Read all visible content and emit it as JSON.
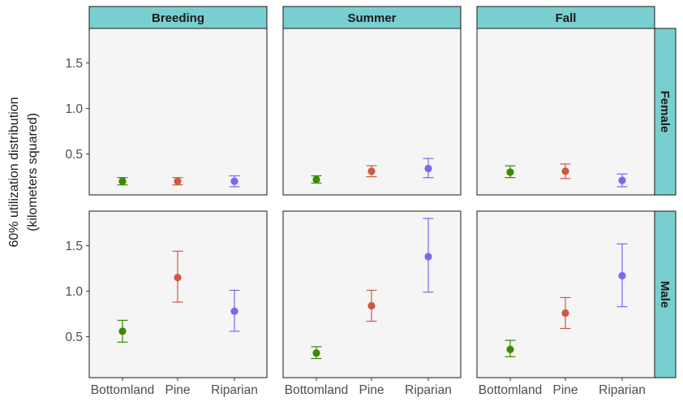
{
  "chart_data": {
    "type": "scatter",
    "ylabel_line1": "60% utilization distribution",
    "ylabel_line2": "(kilometers squared)",
    "categories": [
      "Bottomland",
      "Pine",
      "Riparian"
    ],
    "category_colors": [
      "#3b8a00",
      "#cc5a42",
      "#7b68ee"
    ],
    "col_facets": [
      "Breeding",
      "Summer",
      "Fall"
    ],
    "row_facets": [
      "Female",
      "Male"
    ],
    "yticks": [
      0.5,
      1.0,
      1.5
    ],
    "ytick_labels": [
      "0.5",
      "1.0",
      "1.5"
    ],
    "ylim": [
      0.05,
      1.88
    ],
    "panel_background": "#f5f5f5",
    "strip_color": "#79cfcf",
    "panels": [
      {
        "row": "Female",
        "col": "Breeding",
        "points": [
          {
            "category": "Bottomland",
            "y": 0.2,
            "low": 0.16,
            "high": 0.24
          },
          {
            "category": "Pine",
            "y": 0.2,
            "low": 0.16,
            "high": 0.24
          },
          {
            "category": "Riparian",
            "y": 0.2,
            "low": 0.14,
            "high": 0.26
          }
        ]
      },
      {
        "row": "Female",
        "col": "Summer",
        "points": [
          {
            "category": "Bottomland",
            "y": 0.22,
            "low": 0.18,
            "high": 0.26
          },
          {
            "category": "Pine",
            "y": 0.31,
            "low": 0.25,
            "high": 0.37
          },
          {
            "category": "Riparian",
            "y": 0.34,
            "low": 0.24,
            "high": 0.45
          }
        ]
      },
      {
        "row": "Female",
        "col": "Fall",
        "points": [
          {
            "category": "Bottomland",
            "y": 0.3,
            "low": 0.24,
            "high": 0.37
          },
          {
            "category": "Pine",
            "y": 0.31,
            "low": 0.23,
            "high": 0.39
          },
          {
            "category": "Riparian",
            "y": 0.21,
            "low": 0.14,
            "high": 0.28
          }
        ]
      },
      {
        "row": "Male",
        "col": "Breeding",
        "points": [
          {
            "category": "Bottomland",
            "y": 0.56,
            "low": 0.44,
            "high": 0.68
          },
          {
            "category": "Pine",
            "y": 1.15,
            "low": 0.88,
            "high": 1.44
          },
          {
            "category": "Riparian",
            "y": 0.78,
            "low": 0.56,
            "high": 1.01
          }
        ]
      },
      {
        "row": "Male",
        "col": "Summer",
        "points": [
          {
            "category": "Bottomland",
            "y": 0.32,
            "low": 0.26,
            "high": 0.39
          },
          {
            "category": "Pine",
            "y": 0.84,
            "low": 0.67,
            "high": 1.01
          },
          {
            "category": "Riparian",
            "y": 1.38,
            "low": 0.99,
            "high": 1.8
          }
        ]
      },
      {
        "row": "Male",
        "col": "Fall",
        "points": [
          {
            "category": "Bottomland",
            "y": 0.36,
            "low": 0.28,
            "high": 0.46
          },
          {
            "category": "Pine",
            "y": 0.76,
            "low": 0.59,
            "high": 0.93
          },
          {
            "category": "Riparian",
            "y": 1.17,
            "low": 0.83,
            "high": 1.52
          }
        ]
      }
    ]
  }
}
